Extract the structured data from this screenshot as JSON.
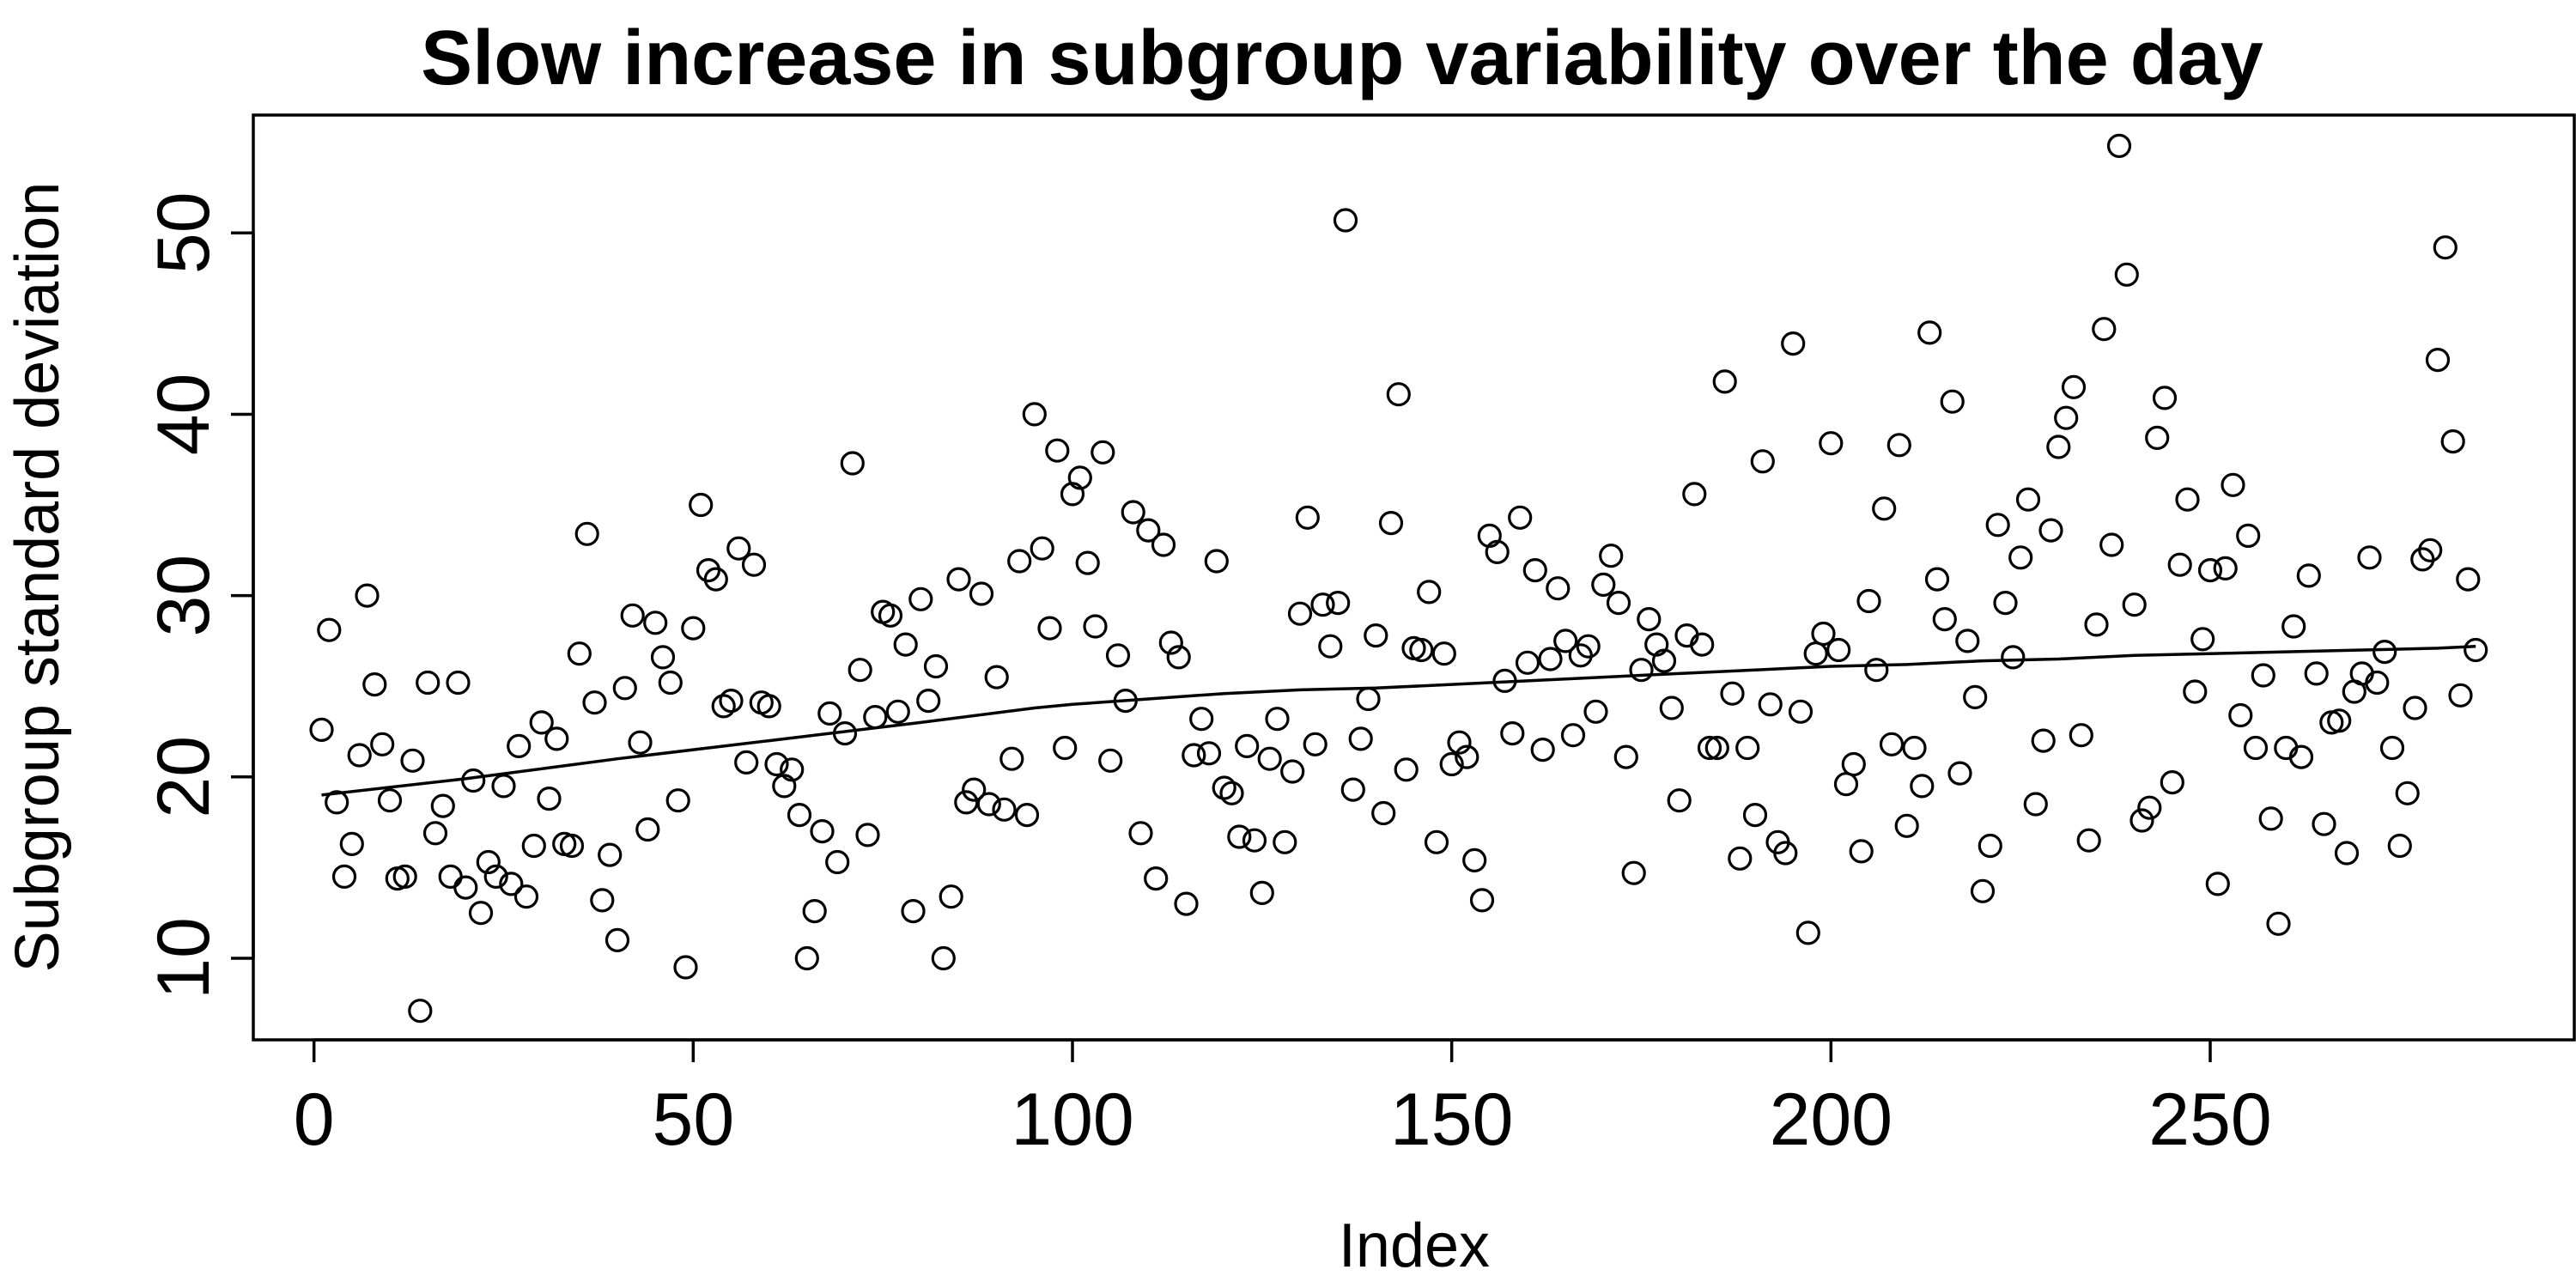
{
  "chart_data": {
    "type": "scatter",
    "title": "Slow increase in subgroup variability over the day",
    "xlabel": "Index",
    "ylabel": "Subgroup standard deviation",
    "xlim": [
      -8,
      298
    ],
    "ylim": [
      5.5,
      56.5
    ],
    "xticks": [
      0,
      50,
      100,
      150,
      200,
      250
    ],
    "yticks": [
      10,
      20,
      30,
      40,
      50
    ],
    "grid": false,
    "legend": "none",
    "colors": {
      "points": "#000000",
      "trend": "#000000"
    },
    "x": [
      1,
      2,
      3,
      4,
      5,
      6,
      7,
      8,
      9,
      10,
      11,
      12,
      13,
      14,
      15,
      16,
      17,
      18,
      19,
      20,
      21,
      22,
      23,
      24,
      25,
      26,
      27,
      28,
      29,
      30,
      31,
      32,
      33,
      34,
      35,
      36,
      37,
      38,
      39,
      40,
      41,
      42,
      43,
      44,
      45,
      46,
      47,
      48,
      49,
      50,
      51,
      52,
      53,
      54,
      55,
      56,
      57,
      58,
      59,
      60,
      61,
      62,
      63,
      64,
      65,
      66,
      67,
      68,
      69,
      70,
      71,
      72,
      73,
      74,
      75,
      76,
      77,
      78,
      79,
      80,
      81,
      82,
      83,
      84,
      85,
      86,
      87,
      88,
      89,
      90,
      91,
      92,
      93,
      94,
      95,
      96,
      97,
      98,
      99,
      100,
      101,
      102,
      103,
      104,
      105,
      106,
      107,
      108,
      109,
      110,
      111,
      112,
      113,
      114,
      115,
      116,
      117,
      118,
      119,
      120,
      121,
      122,
      123,
      124,
      125,
      126,
      127,
      128,
      129,
      130,
      131,
      132,
      133,
      134,
      135,
      136,
      137,
      138,
      139,
      140,
      141,
      142,
      143,
      144,
      145,
      146,
      147,
      148,
      149,
      150,
      151,
      152,
      153,
      154,
      155,
      156,
      157,
      158,
      159,
      160,
      161,
      162,
      163,
      164,
      165,
      166,
      167,
      168,
      169,
      170,
      171,
      172,
      173,
      174,
      175,
      176,
      177,
      178,
      179,
      180,
      181,
      182,
      183,
      184,
      185,
      186,
      187,
      188,
      189,
      190,
      191,
      192,
      193,
      194,
      195,
      196,
      197,
      198,
      199,
      200,
      201,
      202,
      203,
      204,
      205,
      206,
      207,
      208,
      209,
      210,
      211,
      212,
      213,
      214,
      215,
      216,
      217,
      218,
      219,
      220,
      221,
      222,
      223,
      224,
      225,
      226,
      227,
      228,
      229,
      230,
      231,
      232,
      233,
      234,
      235,
      236,
      237,
      238,
      239,
      240,
      241,
      242,
      243,
      244,
      245,
      246,
      247,
      248,
      249,
      250,
      251,
      252,
      253,
      254,
      255,
      256,
      257,
      258,
      259,
      260,
      261,
      262,
      263,
      264,
      265,
      266,
      267,
      268,
      269,
      270,
      271,
      272,
      273,
      274,
      275,
      276,
      277,
      278,
      279,
      280,
      281,
      282,
      283,
      284,
      285
    ],
    "y": [
      22.6,
      28.1,
      18.6,
      14.5,
      16.3,
      21.2,
      30.0,
      25.1,
      21.8,
      18.7,
      14.4,
      14.5,
      20.9,
      7.1,
      25.2,
      16.9,
      18.4,
      14.5,
      25.2,
      13.9,
      19.8,
      12.5,
      15.3,
      14.5,
      19.5,
      14.1,
      21.7,
      13.4,
      16.2,
      23.0,
      18.8,
      22.1,
      16.3,
      16.2,
      26.8,
      33.4,
      24.1,
      13.2,
      15.7,
      11.0,
      24.9,
      28.9,
      21.9,
      17.1,
      28.5,
      26.6,
      25.2,
      18.7,
      9.5,
      28.2,
      35.0,
      31.4,
      30.9,
      23.9,
      24.2,
      32.6,
      20.8,
      31.7,
      24.1,
      23.9,
      20.7,
      19.5,
      20.4,
      17.9,
      10.0,
      12.6,
      17.0,
      23.5,
      15.3,
      22.4,
      37.3,
      25.9,
      16.8,
      23.3,
      29.1,
      28.9,
      23.6,
      27.3,
      12.6,
      29.8,
      24.2,
      26.1,
      10.0,
      13.4,
      30.9,
      18.6,
      19.3,
      30.1,
      18.5,
      25.5,
      18.2,
      21.0,
      31.9,
      17.9,
      40.0,
      32.6,
      28.2,
      38.0,
      21.6,
      35.6,
      36.5,
      31.8,
      28.3,
      37.9,
      20.9,
      26.7,
      24.2,
      34.6,
      16.9,
      33.6,
      14.4,
      32.8,
      27.4,
      26.6,
      13.0,
      21.2,
      23.2,
      21.3,
      31.9,
      19.4,
      19.1,
      16.7,
      21.7,
      16.5,
      13.6,
      21.0,
      23.2,
      16.4,
      20.3,
      29.0,
      34.3,
      21.8,
      29.5,
      27.2,
      29.6,
      50.7,
      19.3,
      22.1,
      24.3,
      27.8,
      18.0,
      34.0,
      41.1,
      20.4,
      27.1,
      27.0,
      30.2,
      16.4,
      26.8,
      20.7,
      21.9,
      21.1,
      15.4,
      13.2,
      33.3,
      32.4,
      25.3,
      22.4,
      34.3,
      26.3,
      31.4,
      21.5,
      26.5,
      30.4,
      27.5,
      22.3,
      26.7,
      27.2,
      23.6,
      30.6,
      32.2,
      29.6,
      21.1,
      14.7,
      25.9,
      28.7,
      27.3,
      26.4,
      23.8,
      18.7,
      27.8,
      35.6,
      27.3,
      21.6,
      21.6,
      41.8,
      24.6,
      15.5,
      21.6,
      17.9,
      37.4,
      24.0,
      16.4,
      15.8,
      43.9,
      23.6,
      11.4,
      26.8,
      27.9,
      38.4,
      27.0,
      19.6,
      20.7,
      15.9,
      29.7,
      25.9,
      34.8,
      21.8,
      38.3,
      17.3,
      21.6,
      19.5,
      44.5,
      30.9,
      28.7,
      40.7,
      20.2,
      27.5,
      24.4,
      13.7,
      16.2,
      33.9,
      29.6,
      26.6,
      32.1,
      35.3,
      18.5,
      22.0,
      33.6,
      38.2,
      39.8,
      41.5,
      22.3,
      16.5,
      28.4,
      44.7,
      32.8,
      54.8,
      47.7,
      29.5,
      17.6,
      18.3,
      38.7,
      40.9,
      19.7,
      31.7,
      35.3,
      24.7,
      27.6,
      31.4,
      14.1,
      31.5,
      36.1,
      23.4,
      33.3,
      21.6,
      25.6,
      17.7,
      11.9,
      21.6,
      28.3,
      21.1,
      31.1,
      25.7,
      17.4,
      23.0,
      23.1,
      15.8,
      24.7,
      25.7,
      32.1,
      25.2,
      26.9,
      21.6,
      16.2,
      19.1,
      23.8,
      32.0,
      32.5,
      43.0,
      49.2,
      38.5,
      24.5,
      30.9,
      27.0
    ],
    "trend": {
      "x": [
        1,
        20,
        40,
        60,
        80,
        95,
        100,
        110,
        120,
        130,
        140,
        150,
        160,
        170,
        180,
        190,
        200,
        210,
        220,
        230,
        240,
        250,
        260,
        270,
        280,
        285
      ],
      "y": [
        19.0,
        19.9,
        21.0,
        22.0,
        23.0,
        23.8,
        24.0,
        24.3,
        24.6,
        24.8,
        24.9,
        25.1,
        25.3,
        25.5,
        25.7,
        25.9,
        26.1,
        26.2,
        26.4,
        26.5,
        26.7,
        26.8,
        26.9,
        27.0,
        27.1,
        27.2
      ]
    }
  }
}
